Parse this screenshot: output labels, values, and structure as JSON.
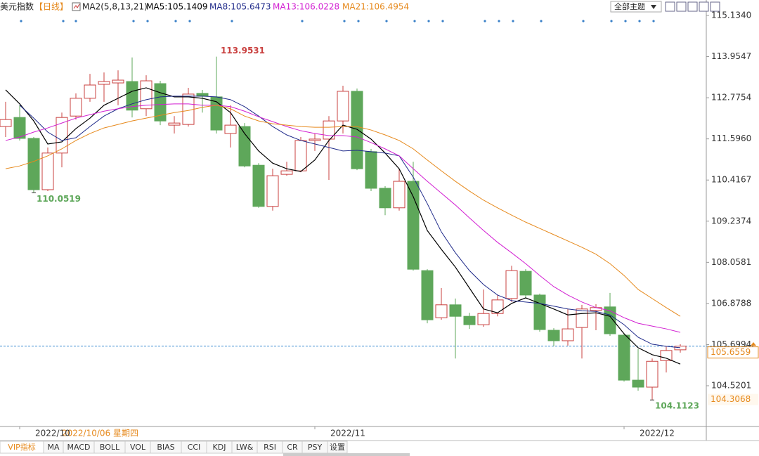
{
  "chart_data": {
    "type": "candlestick",
    "title": "美元指数",
    "period": "【日线】",
    "indicator": "MA2(5,8,13,21)",
    "crosshair_date": "2022/10/06 星期四",
    "theme_select": "全部主题",
    "toolbar": [
      "VIP指标",
      "MA",
      "MACD",
      "BOLL",
      "VOL",
      "BIAS",
      "CCI",
      "KDJ",
      "LW&",
      "RSI",
      "CR",
      "PSY",
      "设置"
    ],
    "categories": [
      null,
      "2022/10",
      null,
      null,
      null,
      null,
      null,
      null,
      null,
      null,
      null,
      null,
      null,
      null,
      null,
      null,
      null,
      null,
      null,
      null,
      null,
      null,
      "2022/11",
      null,
      null,
      null,
      null,
      null,
      null,
      null,
      null,
      null,
      null,
      null,
      null,
      null,
      null,
      null,
      null,
      null,
      null,
      null,
      null,
      null,
      "2022/12",
      null,
      null,
      null,
      null
    ],
    "open": [
      111.95,
      112.21,
      111.61,
      110.14,
      111.19,
      112.25,
      112.76,
      113.16,
      113.2,
      113.24,
      112.46,
      113.18,
      111.99,
      112.01,
      112.9,
      112.8,
      111.75,
      111.95,
      110.84,
      109.66,
      110.58,
      110.68,
      111.55,
      111.59,
      112.11,
      112.96,
      111.23,
      110.18,
      109.62,
      110.38,
      107.82,
      106.47,
      106.84,
      106.51,
      106.27,
      106.59,
      107.02,
      107.8,
      107.12,
      106.11,
      105.81,
      106.19,
      106.68,
      106.78,
      105.97,
      104.68,
      104.48,
      105.24,
      105.55
    ],
    "high": [
      112.66,
      112.56,
      111.65,
      111.35,
      112.35,
      112.9,
      113.46,
      113.5,
      113.56,
      113.93,
      113.42,
      113.26,
      112.25,
      113.06,
      113.0,
      113.9531,
      112.56,
      112.05,
      110.9,
      110.74,
      110.94,
      111.65,
      111.75,
      112.25,
      113.12,
      113.04,
      111.31,
      110.24,
      110.74,
      110.94,
      107.86,
      107.32,
      107.02,
      106.61,
      107.28,
      107.12,
      107.96,
      107.86,
      107.16,
      106.17,
      106.72,
      106.84,
      106.86,
      107.18,
      106.03,
      105.57,
      105.3,
      105.65,
      105.71
    ],
    "low": [
      111.65,
      111.55,
      110.0519,
      110.1,
      110.78,
      112.15,
      112.66,
      112.66,
      112.56,
      112.21,
      112.25,
      111.99,
      111.75,
      111.95,
      112.35,
      111.75,
      111.35,
      110.78,
      109.62,
      109.54,
      110.54,
      110.64,
      111.25,
      110.42,
      111.75,
      110.7,
      110.1,
      109.41,
      109.54,
      107.82,
      106.31,
      106.41,
      105.3,
      106.15,
      106.21,
      106.51,
      106.92,
      107.02,
      106.07,
      105.65,
      105.67,
      105.3,
      106.11,
      105.95,
      104.64,
      104.38,
      104.1123,
      104.9,
      105.47
    ],
    "close": [
      112.15,
      111.61,
      110.14,
      111.19,
      112.21,
      112.76,
      113.14,
      113.24,
      113.28,
      112.42,
      113.26,
      112.11,
      112.05,
      112.88,
      112.82,
      111.85,
      111.99,
      110.82,
      109.66,
      110.54,
      110.68,
      111.55,
      111.59,
      112.11,
      112.96,
      110.74,
      110.18,
      109.62,
      110.38,
      107.86,
      106.41,
      106.84,
      106.51,
      106.27,
      106.59,
      106.98,
      107.82,
      107.12,
      106.13,
      105.81,
      106.15,
      106.72,
      106.76,
      106.01,
      104.68,
      104.48,
      105.22,
      105.53,
      105.6559
    ],
    "up_color": "#c9403f",
    "down_color": "#5ea75a",
    "series": [
      {
        "name": "MA5:105.1409",
        "color": "#000000",
        "values": [
          113.0,
          112.6,
          112.11,
          111.45,
          111.51,
          111.89,
          112.19,
          112.56,
          112.76,
          112.96,
          113.06,
          112.92,
          112.8,
          112.8,
          112.76,
          112.66,
          112.35,
          111.75,
          111.25,
          110.9,
          110.74,
          110.66,
          110.99,
          111.55,
          111.99,
          111.87,
          111.59,
          111.19,
          110.74,
          109.94,
          108.97,
          108.43,
          107.92,
          107.32,
          106.72,
          106.61,
          106.88,
          107.04,
          106.88,
          106.72,
          106.55,
          106.59,
          106.61,
          106.51,
          106.01,
          105.61,
          105.41,
          105.31,
          105.14
        ]
      },
      {
        "name": "MA8:105.6473",
        "color": "#1f2a8a",
        "values": [
          null,
          112.56,
          112.19,
          111.79,
          111.55,
          111.63,
          111.95,
          112.25,
          112.46,
          112.6,
          112.72,
          112.8,
          112.82,
          112.82,
          112.82,
          112.8,
          112.72,
          112.52,
          112.25,
          111.95,
          111.71,
          111.55,
          111.45,
          111.35,
          111.25,
          111.27,
          111.23,
          111.19,
          111.11,
          110.5,
          109.74,
          108.93,
          108.33,
          107.82,
          107.42,
          107.12,
          106.96,
          106.92,
          106.88,
          106.8,
          106.72,
          106.67,
          106.65,
          106.55,
          106.27,
          105.91,
          105.71,
          105.65,
          105.61
        ]
      },
      {
        "name": "MA13:106.0228",
        "color": "#d21fd2",
        "values": [
          111.55,
          111.65,
          111.79,
          111.91,
          112.05,
          112.19,
          112.29,
          112.39,
          112.46,
          112.52,
          112.56,
          112.58,
          112.6,
          112.6,
          112.56,
          112.56,
          112.52,
          112.39,
          112.23,
          112.09,
          111.95,
          111.83,
          111.75,
          111.69,
          111.69,
          111.65,
          111.49,
          111.31,
          111.11,
          110.74,
          110.38,
          110.04,
          109.7,
          109.33,
          108.97,
          108.63,
          108.33,
          108.02,
          107.68,
          107.36,
          107.12,
          106.92,
          106.76,
          106.67,
          106.47,
          106.31,
          106.23,
          106.15,
          106.05
        ]
      },
      {
        "name": "MA21:106.4954",
        "color": "#e6891c",
        "values": [
          110.74,
          110.82,
          110.95,
          111.11,
          111.31,
          111.55,
          111.75,
          111.91,
          112.01,
          112.11,
          112.19,
          112.27,
          112.35,
          112.41,
          112.5,
          112.56,
          112.46,
          112.25,
          112.11,
          112.03,
          111.99,
          111.95,
          111.93,
          111.93,
          111.95,
          111.95,
          111.85,
          111.71,
          111.55,
          111.31,
          110.99,
          110.68,
          110.38,
          110.1,
          109.84,
          109.62,
          109.41,
          109.21,
          109.03,
          108.85,
          108.67,
          108.49,
          108.29,
          108.02,
          107.68,
          107.28,
          107.02,
          106.76,
          106.51
        ]
      }
    ],
    "annotations": [
      113.9531,
      110.0519,
      104.1123
    ],
    "price_markers": [
      105.6559,
      104.3068
    ],
    "ylim": [
      103.352,
      115.577
    ],
    "yticks": [
      {
        "value": 115.134,
        "label": "115.1340"
      },
      113.9547,
      112.7754,
      {
        "value": 111.596,
        "label": "111.5960"
      },
      110.4167,
      109.2374,
      108.0581,
      106.8788,
      105.6994,
      104.5201
    ]
  }
}
